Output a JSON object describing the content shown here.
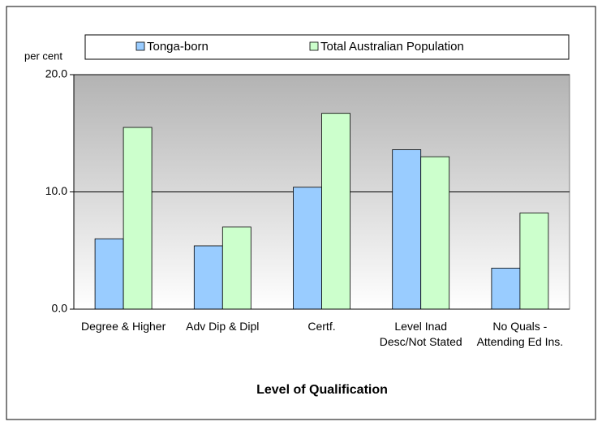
{
  "chart_data": {
    "type": "bar",
    "y_axis_label": "per cent",
    "x_axis_label": "Level of Qualification",
    "categories": [
      "Degree & Higher",
      "Adv Dip & Dipl",
      "Certf.",
      "Level Inad Desc/Not Stated",
      "No Quals - Attending Ed Ins."
    ],
    "series": [
      {
        "name": "Tonga-born",
        "color": "#99ccff",
        "values": [
          6.0,
          5.4,
          10.4,
          13.6,
          3.5
        ]
      },
      {
        "name": "Total Australian Population",
        "color": "#ccffcc",
        "values": [
          15.5,
          7.0,
          16.7,
          13.0,
          8.2
        ]
      }
    ],
    "ylim": [
      0,
      20
    ],
    "yticks": [
      {
        "value": 0,
        "label": "0.0"
      },
      {
        "value": 10,
        "label": "10.0"
      },
      {
        "value": 20,
        "label": "20.0"
      }
    ],
    "grid": true,
    "legend": "top"
  }
}
